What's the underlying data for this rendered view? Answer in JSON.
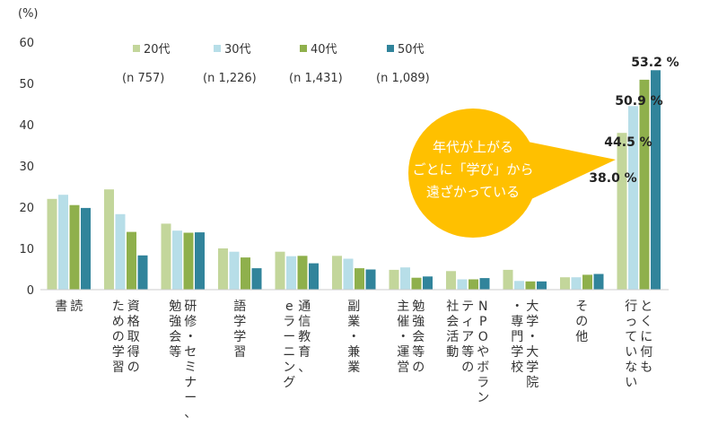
{
  "chart_data": {
    "type": "bar",
    "unit_label": "(%)",
    "ylim": [
      0,
      60
    ],
    "yticks": [
      0,
      10,
      20,
      30,
      40,
      50,
      60
    ],
    "grid": false,
    "legend_position": "top",
    "categories": [
      [
        "読",
        "書"
      ],
      [
        "資格取得の",
        "ための学習"
      ],
      [
        "研修・セミナー、",
        "勉強会等"
      ],
      [
        "語学学習"
      ],
      [
        "通信教育、",
        "eラーニング"
      ],
      [
        "副業・兼業"
      ],
      [
        "勉強会等の",
        "主催・運営"
      ],
      [
        "NPOやボラン",
        "ティア等の",
        "社会活動"
      ],
      [
        "大学・大学院",
        "・専門学校"
      ],
      [
        "その他"
      ],
      [
        "とくに何も",
        "行っていない"
      ]
    ],
    "series": [
      {
        "name": "20代",
        "n": "(n 757)",
        "color": "#c3d69b",
        "values": [
          22.0,
          24.3,
          16.0,
          10.0,
          9.2,
          8.2,
          4.8,
          4.5,
          4.8,
          3.0,
          38.0
        ]
      },
      {
        "name": "30代",
        "n": "(n 1,226)",
        "color": "#b7dee8",
        "values": [
          23.0,
          18.3,
          14.3,
          9.2,
          8.1,
          7.5,
          5.4,
          2.5,
          2.1,
          3.0,
          44.5
        ]
      },
      {
        "name": "40代",
        "n": "(n 1,431)",
        "color": "#8fb04c",
        "values": [
          20.5,
          14.0,
          13.8,
          7.8,
          8.2,
          5.2,
          2.9,
          2.5,
          2.0,
          3.6,
          50.9
        ]
      },
      {
        "name": "50代",
        "n": "(n 1,089)",
        "color": "#31849b",
        "values": [
          19.8,
          8.3,
          13.9,
          5.2,
          6.4,
          4.9,
          3.2,
          2.8,
          2.0,
          3.8,
          53.2
        ]
      }
    ],
    "data_labels": [
      "38.0 %",
      "44.5 %",
      "50.9 %",
      "53.2 %"
    ],
    "callout": {
      "lines": [
        "年代が上がる",
        "ごとに「学び」から",
        "遠ざかっている"
      ],
      "color": "#ffc000"
    }
  }
}
